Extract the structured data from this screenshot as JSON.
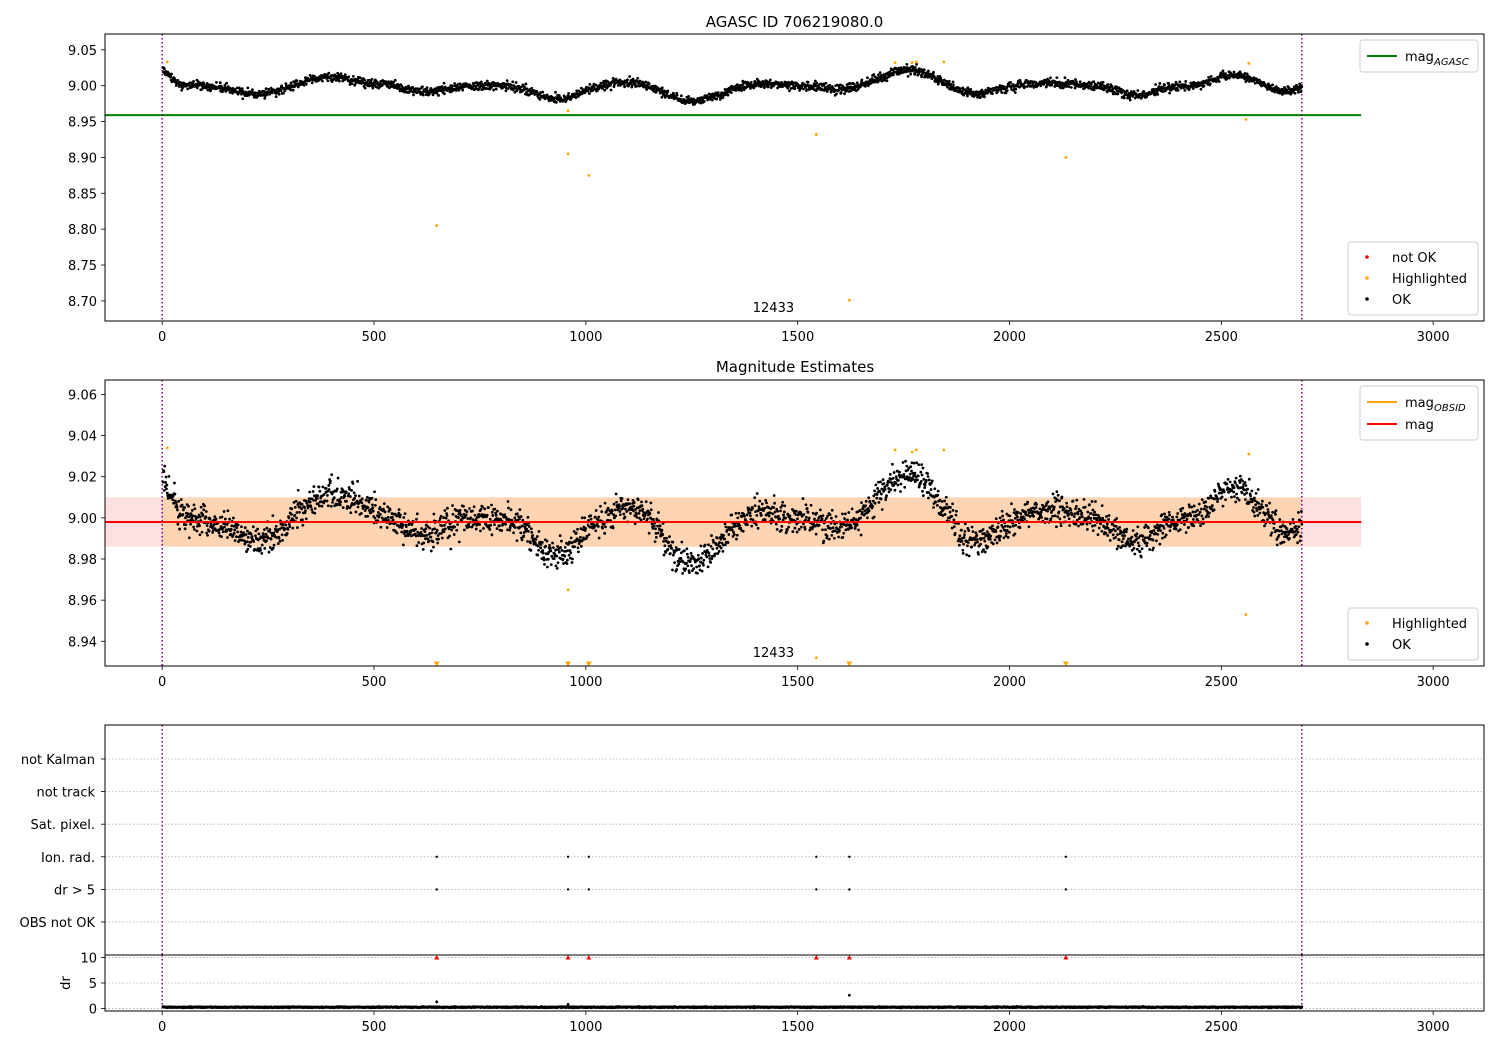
{
  "chart_data": [
    {
      "type": "scatter",
      "title": "AGASC ID 706219080.0",
      "xlim": [
        -135,
        3120
      ],
      "ylim": [
        8.672,
        9.072
      ],
      "xticks": [
        0,
        500,
        1000,
        1500,
        2000,
        2500,
        3000
      ],
      "yticks": [
        8.7,
        8.75,
        8.8,
        8.85,
        8.9,
        8.95,
        9.0,
        9.05
      ],
      "ytick_decimals": 2,
      "grid": false,
      "obsid_label": "12433",
      "obsid_label_x": 1346,
      "obsid_bounds": [
        0,
        2690
      ],
      "mag_agasc": 8.959,
      "mag_agasc_x_range": [
        -135,
        2830
      ],
      "legend_lines": [
        {
          "label": "mag",
          "sub": "AGASC",
          "color": "#008000"
        }
      ],
      "legend_lines_placement": "upper right",
      "legend_points": [
        {
          "label": "not OK",
          "color": "#ff0000"
        },
        {
          "label": "Highlighted",
          "color": "#ffa500"
        },
        {
          "label": "OK",
          "color": "#000000"
        }
      ],
      "legend_points_placement": "lower right",
      "series": [
        {
          "name": "OK",
          "color": "#000000",
          "generated": {
            "n": 2688,
            "x_range": [
              2,
              2690
            ],
            "center": 9.0,
            "noise": 0.006,
            "bumps": [
              [
                0,
                0.02,
                30
              ],
              [
                230,
                -0.012,
                80
              ],
              [
                400,
                0.012,
                90
              ],
              [
                620,
                -0.008,
                60
              ],
              [
                930,
                -0.018,
                70
              ],
              [
                1120,
                0.007,
                70
              ],
              [
                1250,
                -0.022,
                90
              ],
              [
                1400,
                0.003,
                60
              ],
              [
                1600,
                -0.005,
                60
              ],
              [
                1760,
                0.022,
                80
              ],
              [
                1920,
                -0.012,
                60
              ],
              [
                2100,
                0.004,
                60
              ],
              [
                2300,
                -0.013,
                60
              ],
              [
                2530,
                0.015,
                60
              ],
              [
                2650,
                -0.008,
                40
              ]
            ]
          }
        },
        {
          "name": "Highlighted",
          "color": "#ffa500",
          "x": [
            12,
            958,
            958,
            1007,
            648,
            1544,
            1622,
            2133,
            2558,
            2565,
            1730,
            1770,
            1780,
            1845
          ],
          "y": [
            9.033,
            8.905,
            8.965,
            8.875,
            8.805,
            8.932,
            8.701,
            8.9,
            8.953,
            9.031,
            9.032,
            9.032,
            9.033,
            9.033
          ]
        }
      ]
    },
    {
      "type": "scatter",
      "title": "Magnitude Estimates",
      "xlim": [
        -135,
        3120
      ],
      "ylim": [
        8.928,
        9.067
      ],
      "xticks": [
        0,
        500,
        1000,
        1500,
        2000,
        2500,
        3000
      ],
      "yticks": [
        8.94,
        8.96,
        8.98,
        9.0,
        9.02,
        9.04,
        9.06
      ],
      "ytick_decimals": 2,
      "grid": false,
      "obsid_label": "12433",
      "obsid_label_x": 1346,
      "obsid_bounds": [
        0,
        2690
      ],
      "mag": 8.998,
      "mag_band": [
        8.986,
        9.01
      ],
      "mag_obsid": 8.998,
      "mag_obsid_band": [
        8.986,
        9.01
      ],
      "band_x_range": [
        -135,
        2830
      ],
      "legend_lines": [
        {
          "label": "mag",
          "sub": "OBSID",
          "color": "#ffa500"
        },
        {
          "label": "mag",
          "sub": "",
          "color": "#ff0000"
        }
      ],
      "legend_lines_placement": "upper right",
      "legend_points": [
        {
          "label": "Highlighted",
          "color": "#ffa500"
        },
        {
          "label": "OK",
          "color": "#000000"
        }
      ],
      "legend_points_placement": "lower right",
      "series": [
        {
          "name": "OK",
          "color": "#000000",
          "generated": {
            "n": 2688,
            "x_range": [
              2,
              2690
            ],
            "center": 9.0,
            "noise": 0.007,
            "bumps": [
              [
                0,
                0.02,
                30
              ],
              [
                230,
                -0.012,
                80
              ],
              [
                400,
                0.012,
                90
              ],
              [
                620,
                -0.008,
                60
              ],
              [
                930,
                -0.018,
                70
              ],
              [
                1120,
                0.007,
                70
              ],
              [
                1250,
                -0.022,
                90
              ],
              [
                1400,
                0.003,
                60
              ],
              [
                1600,
                -0.005,
                60
              ],
              [
                1760,
                0.022,
                80
              ],
              [
                1920,
                -0.012,
                60
              ],
              [
                2100,
                0.004,
                60
              ],
              [
                2300,
                -0.013,
                60
              ],
              [
                2530,
                0.015,
                60
              ],
              [
                2650,
                -0.008,
                40
              ]
            ]
          }
        },
        {
          "name": "Highlighted",
          "color": "#ffa500",
          "x": [
            12,
            958,
            1544,
            2558,
            2565,
            1730,
            1770,
            1780,
            1845
          ],
          "y": [
            9.034,
            8.965,
            8.932,
            8.953,
            9.031,
            9.033,
            9.032,
            9.033,
            9.033
          ]
        },
        {
          "name": "Highlighted (below axis)",
          "color": "#ffa500",
          "marker": "triangle-down",
          "x": [
            648,
            958,
            1007,
            1622,
            2133
          ],
          "y": [
            8.929,
            8.929,
            8.929,
            8.929,
            8.929
          ]
        }
      ]
    },
    {
      "type": "scatter",
      "title": "",
      "xlim": [
        -135,
        3120
      ],
      "categories": [
        "not Kalman",
        "not track",
        "Sat. pixel.",
        "Ion. rad.",
        "dr > 5",
        "OBS not OK"
      ],
      "grid": true,
      "obsid_bounds": [
        0,
        2690
      ],
      "flags": [
        {
          "category": "Ion. rad.",
          "x": [
            648,
            958,
            1007,
            1544,
            1622,
            2133
          ]
        },
        {
          "category": "dr > 5",
          "x": [
            648,
            958,
            1007,
            1544,
            1622,
            2133
          ]
        }
      ]
    },
    {
      "type": "scatter",
      "title": "",
      "ylabel": "dr",
      "xlim": [
        -135,
        3120
      ],
      "ylim": [
        -0.5,
        10.5
      ],
      "xticks": [
        0,
        500,
        1000,
        1500,
        2000,
        2500,
        3000
      ],
      "yticks": [
        0,
        5,
        10
      ],
      "ytick_decimals": 0,
      "grid": true,
      "obsid_bounds": [
        0,
        2690
      ],
      "series": [
        {
          "name": "dr",
          "color": "#000000",
          "generated": {
            "n": 2688,
            "x_range": [
              2,
              2690
            ],
            "center": 0.25,
            "noise": 0.1
          }
        },
        {
          "name": "dr outliers",
          "color": "#000000",
          "x": [
            648,
            958,
            1622
          ],
          "y": [
            1.3,
            0.8,
            2.6
          ]
        },
        {
          "name": "dr clipped",
          "color": "#ff0000",
          "marker": "triangle-up",
          "x": [
            648,
            958,
            1007,
            1544,
            1622,
            2133
          ],
          "y": [
            10,
            10,
            10,
            10,
            10,
            10
          ]
        }
      ]
    }
  ]
}
